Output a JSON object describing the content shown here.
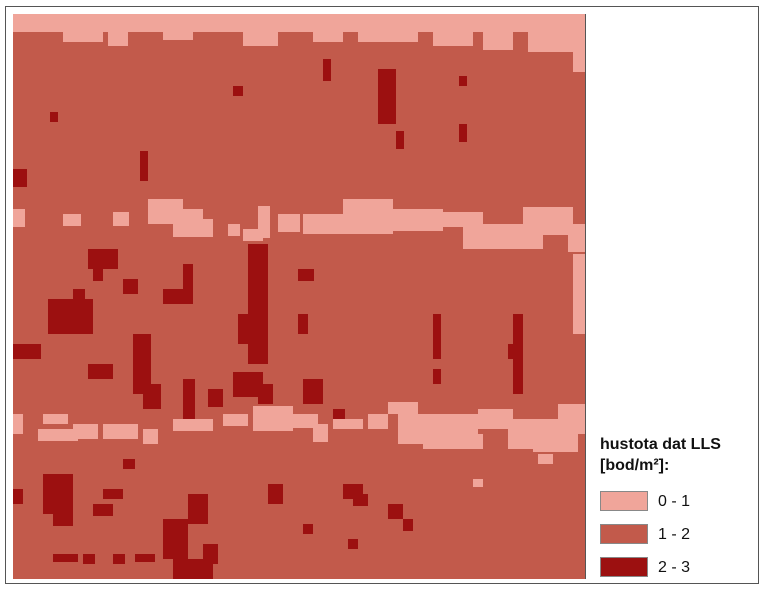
{
  "legend": {
    "title_line1": "hustota dat LLS",
    "title_line2": "[bod/m²]:",
    "classes": [
      {
        "label": "0 - 1",
        "color": "#f0a59a"
      },
      {
        "label": "1 - 2",
        "color": "#c25a4b"
      },
      {
        "label": "2 - 3",
        "color": "#9c1010"
      }
    ]
  },
  "raster": {
    "base_class": "1 - 2",
    "background_color": "#c25a4b"
  }
}
